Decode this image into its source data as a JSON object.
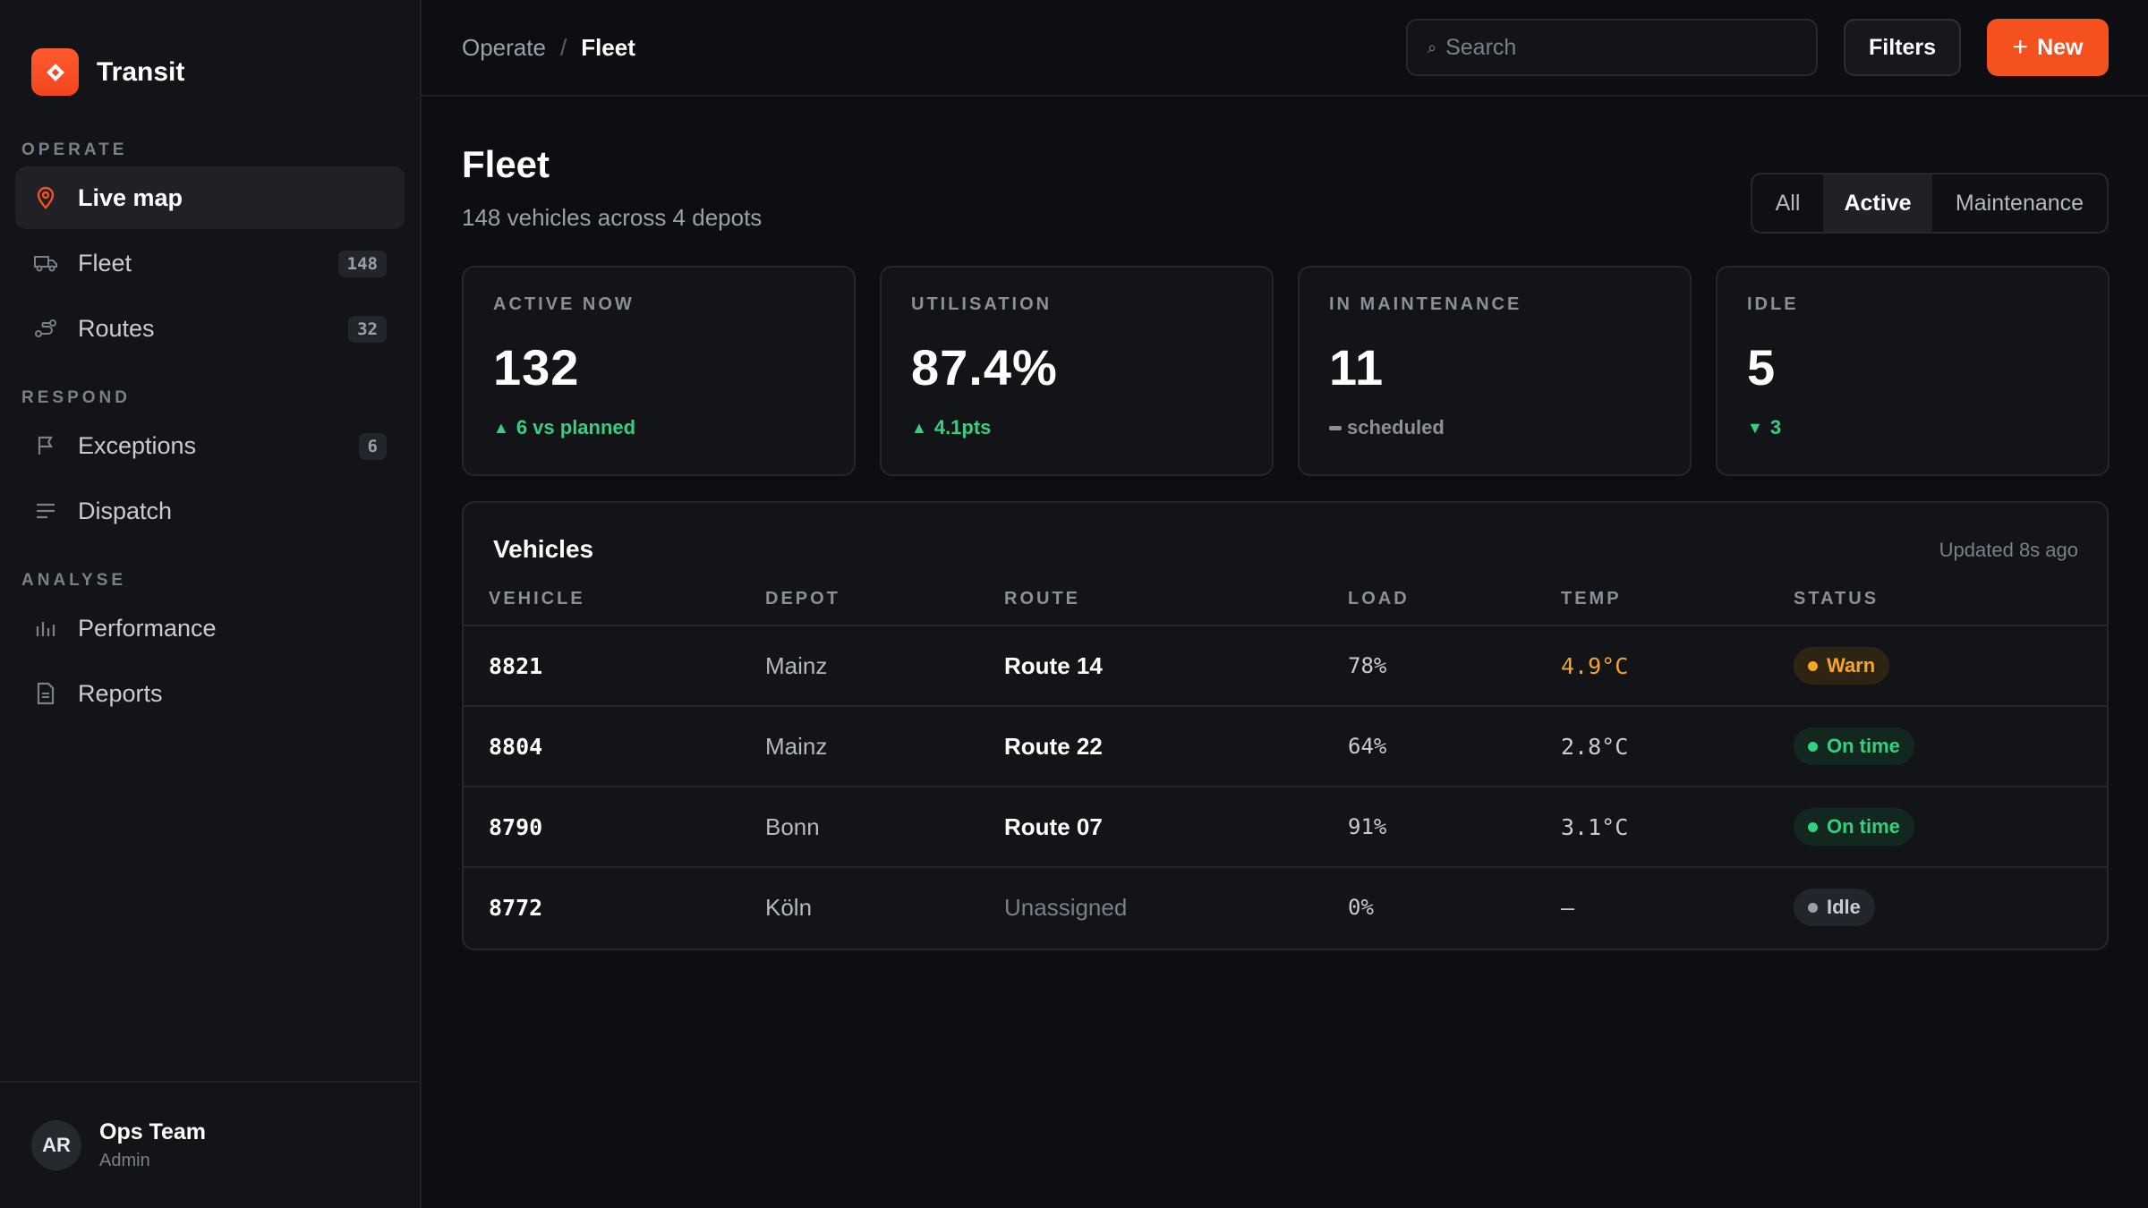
{
  "brand": {
    "name": "Transit"
  },
  "sidebar": {
    "sections": [
      {
        "title": "OPERATE",
        "items": [
          {
            "label": "Live map",
            "icon": "map-pin-icon",
            "active": true
          },
          {
            "label": "Fleet",
            "icon": "truck-icon",
            "count": "148"
          },
          {
            "label": "Routes",
            "icon": "route-icon",
            "count": "32"
          }
        ]
      },
      {
        "title": "RESPOND",
        "items": [
          {
            "label": "Exceptions",
            "icon": "flag-icon",
            "count": "6"
          },
          {
            "label": "Dispatch",
            "icon": "list-icon"
          }
        ]
      },
      {
        "title": "ANALYSE",
        "items": [
          {
            "label": "Performance",
            "icon": "bar-chart-icon"
          },
          {
            "label": "Reports",
            "icon": "document-icon"
          }
        ]
      }
    ],
    "user": {
      "initials": "AR",
      "name": "Ops Team",
      "role": "Admin"
    }
  },
  "topbar": {
    "breadcrumb": {
      "parent": "Operate",
      "separator": "/",
      "current": "Fleet"
    },
    "search": {
      "placeholder": "Search",
      "glyph": "⌕"
    },
    "filters_label": "Filters",
    "new_label": "New",
    "new_plus": "+"
  },
  "page": {
    "title": "Fleet",
    "subtitle": "148 vehicles across 4 depots",
    "segments": {
      "all": "All",
      "active": "Active",
      "maintenance": "Maintenance",
      "selected": "Active"
    }
  },
  "kpis": [
    {
      "label": "ACTIVE NOW",
      "value": "132",
      "delta": "6 vs planned",
      "trend": "up"
    },
    {
      "label": "UTILISATION",
      "value": "87.4%",
      "delta": "4.1pts",
      "trend": "up"
    },
    {
      "label": "IN MAINTENANCE",
      "value": "11",
      "delta": "scheduled",
      "trend": "neutral"
    },
    {
      "label": "IDLE",
      "value": "5",
      "delta": "3",
      "trend": "down"
    }
  ],
  "vehicles": {
    "title": "Vehicles",
    "updated": "Updated 8s ago",
    "columns": {
      "vehicle": "VEHICLE",
      "depot": "DEPOT",
      "route": "ROUTE",
      "load": "LOAD",
      "temp": "TEMP",
      "status": "STATUS"
    },
    "rows": [
      {
        "vehicle": "8821",
        "depot": "Mainz",
        "route": "Route 14",
        "load": "78%",
        "temp": "4.9°C",
        "status": "Warn",
        "status_kind": "warn"
      },
      {
        "vehicle": "8804",
        "depot": "Mainz",
        "route": "Route 22",
        "load": "64%",
        "temp": "2.8°C",
        "status": "On time",
        "status_kind": "ok"
      },
      {
        "vehicle": "8790",
        "depot": "Bonn",
        "route": "Route 07",
        "load": "91%",
        "temp": "3.1°C",
        "status": "On time",
        "status_kind": "ok"
      },
      {
        "vehicle": "8772",
        "depot": "Köln",
        "route": "Unassigned",
        "load": "0%",
        "temp": "—",
        "status": "Idle",
        "status_kind": "idle"
      }
    ]
  },
  "colors": {
    "accent": "#f4511e",
    "success": "#35d07f",
    "warning": "#f5a623",
    "background": "#0d0e11",
    "surface": "#131418"
  }
}
